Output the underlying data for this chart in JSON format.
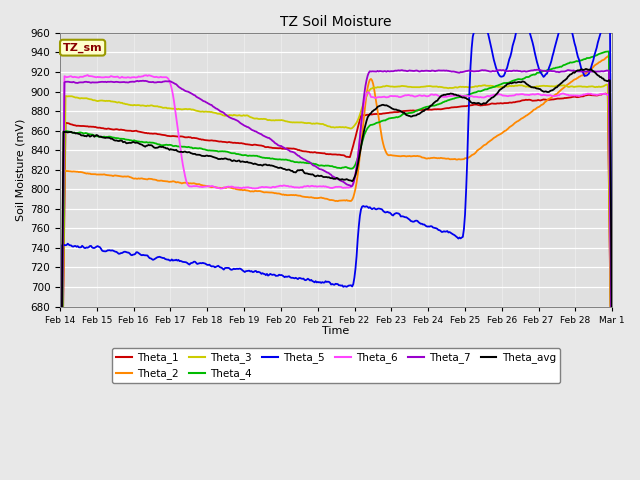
{
  "title": "TZ Soil Moisture",
  "xlabel": "Time",
  "ylabel": "Soil Moisture (mV)",
  "ylim": [
    680,
    960
  ],
  "yticks": [
    680,
    700,
    720,
    740,
    760,
    780,
    800,
    820,
    840,
    860,
    880,
    900,
    920,
    940,
    960
  ],
  "background_color": "#e8e8e8",
  "plot_bg_color": "#e0e0e0",
  "series_colors": {
    "Theta_1": "#cc0000",
    "Theta_2": "#ff8800",
    "Theta_3": "#cccc00",
    "Theta_4": "#00bb00",
    "Theta_5": "#0000ee",
    "Theta_6": "#ff44ff",
    "Theta_7": "#9900cc",
    "Theta_avg": "#000000"
  },
  "label_box": "TZ_sm",
  "tick_labels": [
    "Feb 14",
    "Feb 15",
    "Feb 16",
    "Feb 17",
    "Feb 18",
    "Feb 19",
    "Feb 20",
    "Feb 21",
    "Feb 22",
    "Feb 23",
    "Feb 24",
    "Feb 25",
    "Feb 26",
    "Feb 27",
    "Feb 28",
    "Mar 1"
  ]
}
